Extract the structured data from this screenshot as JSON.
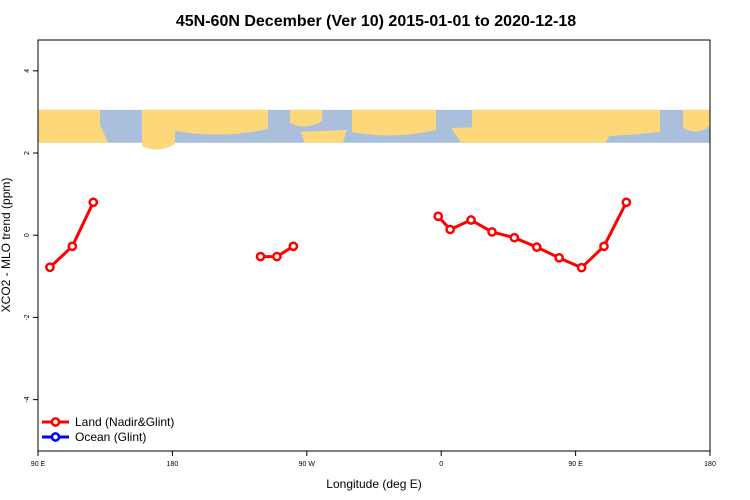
{
  "chart_data": {
    "type": "line",
    "title": "45N-60N December (Ver 10)   2015-01-01 to 2020-12-18",
    "xlabel": "Longitude (deg E)",
    "ylabel": "XCO2 - MLO trend (ppm)",
    "xlim": [
      90,
      540
    ],
    "ylim": [
      -5.25,
      4.75
    ],
    "x_tick_values": [
      90,
      180,
      270,
      360,
      450,
      540
    ],
    "x_tick_labels": [
      "90 E",
      "180",
      "90 W",
      "0",
      "90 E",
      "180"
    ],
    "y_tick_values": [
      -4,
      -2,
      0,
      2,
      4
    ],
    "y_tick_labels": [
      "-4",
      "-2",
      "0",
      "2",
      "4"
    ],
    "map_strip_y_range": [
      2.25,
      3.05
    ],
    "legend_position": "bottom-left",
    "series": [
      {
        "name": "Land (Nadir&Glint)",
        "color": "#ff0000",
        "segments": [
          [
            [
              98,
              -0.78
            ],
            [
              113,
              -0.27
            ],
            [
              127,
              0.8
            ]
          ],
          [
            [
              239,
              -0.52
            ],
            [
              250,
              -0.52
            ],
            [
              261,
              -0.27
            ]
          ],
          [
            [
              358,
              0.46
            ],
            [
              366,
              0.14
            ],
            [
              380,
              0.37
            ],
            [
              394,
              0.08
            ],
            [
              409,
              -0.06
            ],
            [
              424,
              -0.29
            ],
            [
              439,
              -0.55
            ],
            [
              454,
              -0.79
            ],
            [
              469,
              -0.27
            ],
            [
              484,
              0.8
            ]
          ]
        ]
      },
      {
        "name": "Ocean (Glint)",
        "color": "#0000ff",
        "segments": []
      }
    ]
  }
}
